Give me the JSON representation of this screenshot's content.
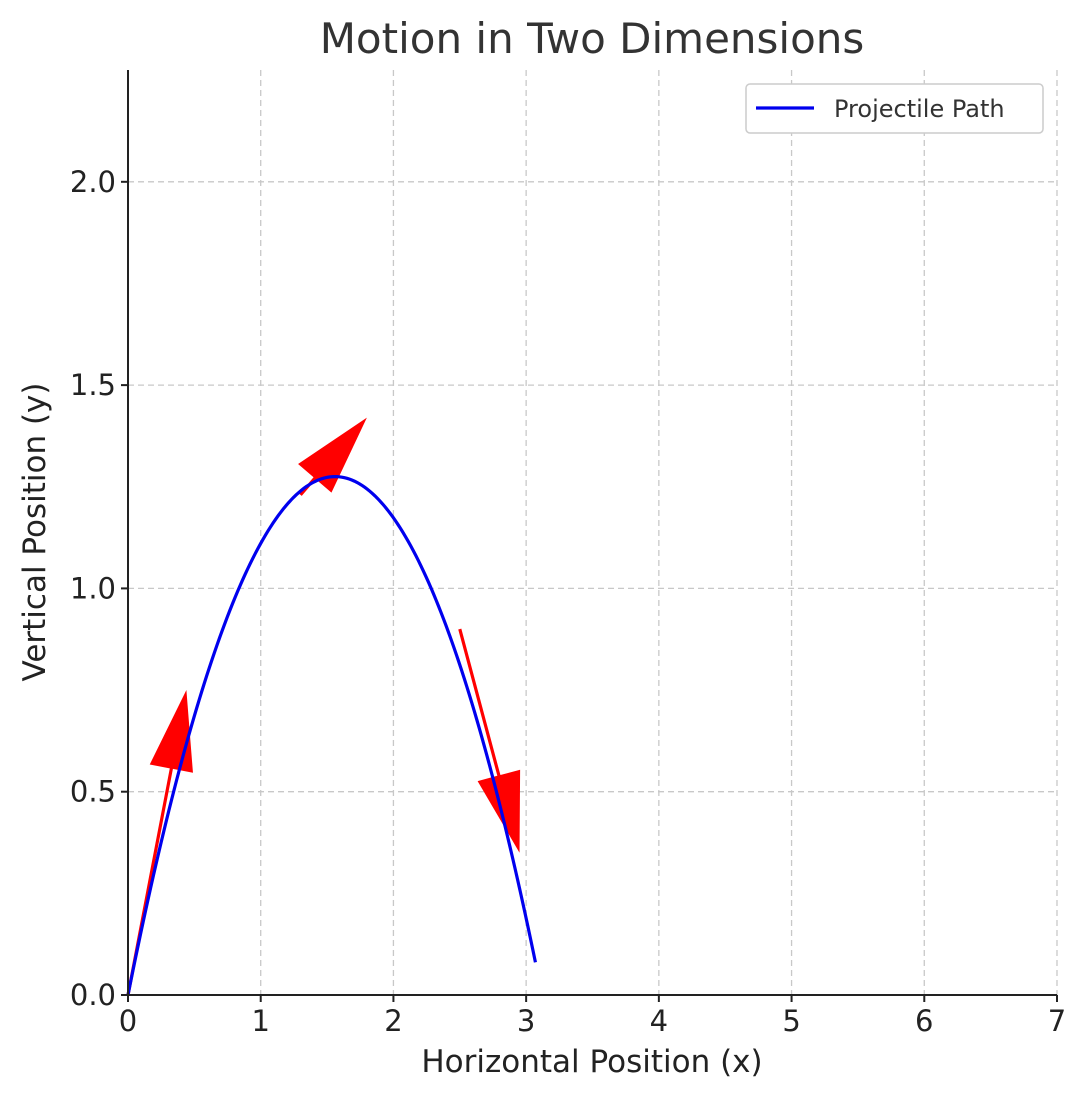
{
  "chart_data": {
    "type": "line",
    "title": "Motion in Two Dimensions",
    "xlabel": "Horizontal Position (x)",
    "ylabel": "Vertical Position (y)",
    "xlim": [
      0,
      7
    ],
    "ylim": [
      0,
      2.275
    ],
    "xticks": [
      "0",
      "1",
      "2",
      "3",
      "4",
      "5",
      "6",
      "7"
    ],
    "xtick_values": [
      0,
      1,
      2,
      3,
      4,
      5,
      6,
      7
    ],
    "yticks": [
      "0.0",
      "0.5",
      "1.0",
      "1.5",
      "2.0"
    ],
    "ytick_values": [
      0,
      0.5,
      1.0,
      1.5,
      2.0
    ],
    "grid": true,
    "legend": {
      "position": "top-right",
      "entries": [
        "Projectile Path"
      ]
    },
    "series": [
      {
        "name": "Projectile Path",
        "color": "#0000ee",
        "curve": "parabola",
        "x_start": 0,
        "x_peak": 1.56,
        "y_peak": 1.275,
        "x_end": 3.07
      }
    ],
    "velocity_arrows": {
      "color": "#ff0000",
      "items": [
        {
          "x": 0,
          "y": 0,
          "dx": 0.44,
          "dy": 0.75
        },
        {
          "x": 1.3,
          "y": 1.23,
          "dx": 0.5,
          "dy": 0.19
        },
        {
          "x": 2.5,
          "y": 0.9,
          "dx": 0.45,
          "dy": -0.55
        }
      ]
    }
  }
}
